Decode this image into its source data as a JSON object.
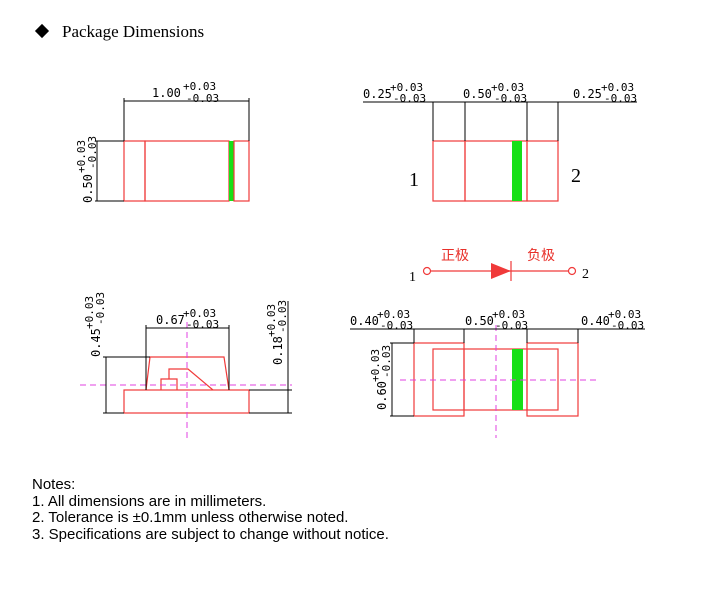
{
  "title": "Package Dimensions",
  "colors": {
    "outline": "#f03a3a",
    "lens": "#f2ea4a",
    "cathode_mark": "#16e016",
    "centerline": "#e040e0"
  },
  "top_view": {
    "length": {
      "value": "1.00",
      "plus": "+0.03",
      "minus": "-0.03"
    },
    "width": {
      "value": "0.50",
      "plus": "+0.03",
      "minus": "-0.03"
    }
  },
  "bottom_view": {
    "pad_left": {
      "value": "0.25",
      "plus": "+0.03",
      "minus": "-0.03"
    },
    "gap": {
      "value": "0.50",
      "plus": "+0.03",
      "minus": "-0.03"
    },
    "pad_right": {
      "value": "0.25",
      "plus": "+0.03",
      "minus": "-0.03"
    },
    "pin1": "1",
    "pin2": "2"
  },
  "symbol": {
    "anode_label": "正极",
    "cathode_label": "负极",
    "pin1": "1",
    "pin2": "2"
  },
  "side_view": {
    "height": {
      "value": "0.45",
      "plus": "+0.03",
      "minus": "-0.03"
    },
    "top_width": {
      "value": "0.67",
      "plus": "+0.03",
      "minus": "-0.03"
    },
    "base_height": {
      "value": "0.18",
      "plus": "+0.03",
      "minus": "-0.03"
    }
  },
  "footprint": {
    "pad_left": {
      "value": "0.40",
      "plus": "+0.03",
      "minus": "-0.03"
    },
    "gap": {
      "value": "0.50",
      "plus": "+0.03",
      "minus": "-0.03"
    },
    "pad_right": {
      "value": "0.40",
      "plus": "+0.03",
      "minus": "-0.03"
    },
    "height": {
      "value": "0.60",
      "plus": "+0.03",
      "minus": "-0.03"
    }
  },
  "notes": {
    "heading": "Notes:",
    "items": [
      "1. All dimensions are in millimeters.",
      "2. Tolerance is ±0.1mm unless otherwise noted.",
      "3. Specifications are subject to change without notice."
    ]
  }
}
